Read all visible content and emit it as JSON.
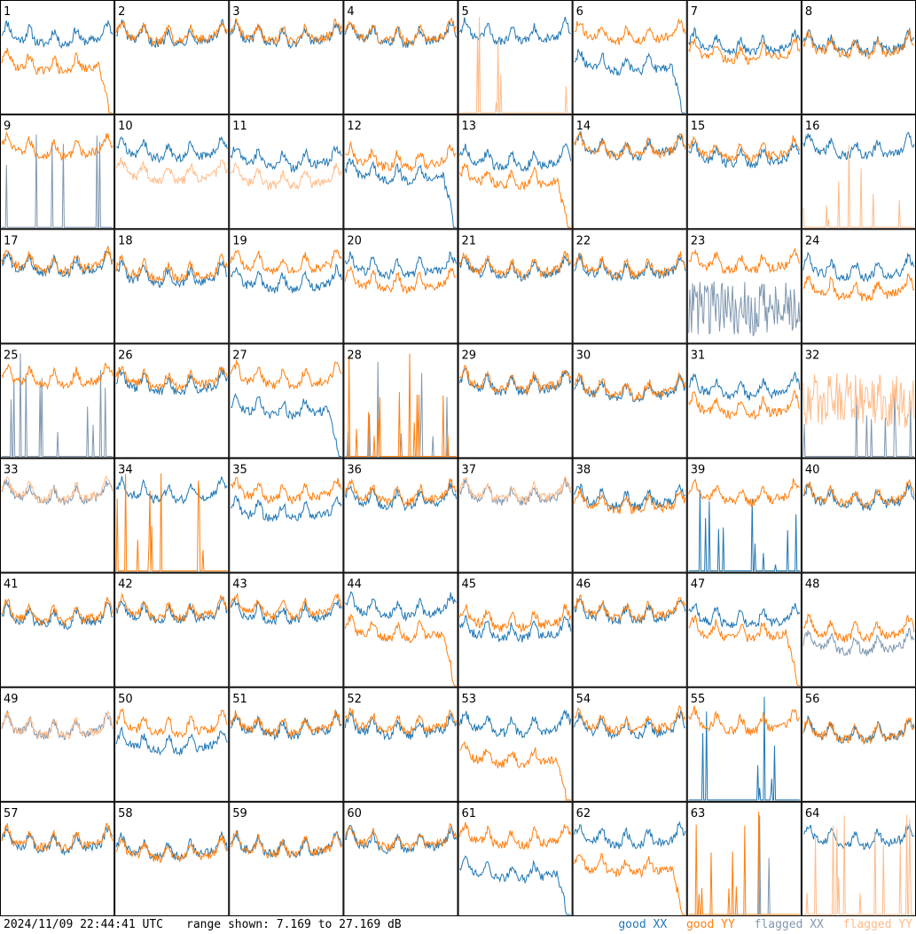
{
  "footer": {
    "timestamp": "2024/11/09 22:44:41 UTC",
    "range_text": "range shown: 7.169 to 27.169 dB"
  },
  "legend": {
    "good_xx": "good XX",
    "good_yy": "good YY",
    "flagged_xx": "flagged XX",
    "flagged_yy": "flagged YY"
  },
  "colors": {
    "good_xx": "#1f77b4",
    "good_yy": "#ff7f0e",
    "flagged_xx": "#7f97b0",
    "flagged_yy": "#ffbb88"
  },
  "chart_data": {
    "type": "line",
    "panels_per_row": 8,
    "ylim": [
      7.169,
      27.169
    ],
    "panels": [
      {
        "id": "1",
        "xx": "good",
        "yy": "good",
        "xx_level": 0.7,
        "yy_level": 0.45,
        "xx_shape": "normal",
        "yy_shape": "fall"
      },
      {
        "id": "2",
        "xx": "good",
        "yy": "good",
        "xx_level": 0.7,
        "yy_level": 0.72,
        "xx_shape": "normal",
        "yy_shape": "normal"
      },
      {
        "id": "3",
        "xx": "good",
        "yy": "good",
        "xx_level": 0.7,
        "yy_level": 0.72,
        "xx_shape": "normal",
        "yy_shape": "normal"
      },
      {
        "id": "4",
        "xx": "good",
        "yy": "good",
        "xx_level": 0.7,
        "yy_level": 0.72,
        "xx_shape": "normal",
        "yy_shape": "normal"
      },
      {
        "id": "5",
        "xx": "good",
        "yy": "flagged",
        "xx_level": 0.72,
        "yy_level": 0.0,
        "xx_shape": "normal",
        "yy_shape": "spiky"
      },
      {
        "id": "6",
        "xx": "good",
        "yy": "good",
        "xx_level": 0.45,
        "yy_level": 0.72,
        "xx_shape": "fall",
        "yy_shape": "normal"
      },
      {
        "id": "7",
        "xx": "good",
        "yy": "good",
        "xx_level": 0.62,
        "yy_level": 0.55,
        "xx_shape": "normal",
        "yy_shape": "normal"
      },
      {
        "id": "8",
        "xx": "good",
        "yy": "good",
        "xx_level": 0.62,
        "yy_level": 0.6,
        "xx_shape": "normal",
        "yy_shape": "normal"
      },
      {
        "id": "9",
        "xx": "flagged",
        "yy": "good",
        "xx_level": 0.0,
        "yy_level": 0.72,
        "xx_shape": "spiky",
        "yy_shape": "normal"
      },
      {
        "id": "10",
        "xx": "good",
        "yy": "flagged",
        "xx_level": 0.7,
        "yy_level": 0.5,
        "xx_shape": "normal",
        "yy_shape": "normal"
      },
      {
        "id": "11",
        "xx": "good",
        "yy": "flagged",
        "xx_level": 0.62,
        "yy_level": 0.45,
        "xx_shape": "normal",
        "yy_shape": "normal"
      },
      {
        "id": "12",
        "xx": "good",
        "yy": "good",
        "xx_level": 0.5,
        "yy_level": 0.62,
        "xx_shape": "fall",
        "yy_shape": "normal"
      },
      {
        "id": "13",
        "xx": "good",
        "yy": "good",
        "xx_level": 0.62,
        "yy_level": 0.45,
        "xx_shape": "normal",
        "yy_shape": "fall"
      },
      {
        "id": "14",
        "xx": "good",
        "yy": "good",
        "xx_level": 0.72,
        "yy_level": 0.72,
        "xx_shape": "normal",
        "yy_shape": "normal"
      },
      {
        "id": "15",
        "xx": "good",
        "yy": "good",
        "xx_level": 0.65,
        "yy_level": 0.7,
        "xx_shape": "normal",
        "yy_shape": "normal"
      },
      {
        "id": "16",
        "xx": "good",
        "yy": "flagged",
        "xx_level": 0.72,
        "yy_level": 0.0,
        "xx_shape": "normal",
        "yy_shape": "spiky"
      },
      {
        "id": "17",
        "xx": "good",
        "yy": "good",
        "xx_level": 0.7,
        "yy_level": 0.72,
        "xx_shape": "normal",
        "yy_shape": "normal"
      },
      {
        "id": "18",
        "xx": "good",
        "yy": "good",
        "xx_level": 0.6,
        "yy_level": 0.65,
        "xx_shape": "normal",
        "yy_shape": "normal"
      },
      {
        "id": "19",
        "xx": "good",
        "yy": "good",
        "xx_level": 0.55,
        "yy_level": 0.72,
        "xx_shape": "normal",
        "yy_shape": "normal"
      },
      {
        "id": "20",
        "xx": "good",
        "yy": "good",
        "xx_level": 0.68,
        "yy_level": 0.55,
        "xx_shape": "normal",
        "yy_shape": "normal"
      },
      {
        "id": "21",
        "xx": "good",
        "yy": "good",
        "xx_level": 0.66,
        "yy_level": 0.68,
        "xx_shape": "normal",
        "yy_shape": "normal"
      },
      {
        "id": "22",
        "xx": "good",
        "yy": "good",
        "xx_level": 0.66,
        "yy_level": 0.68,
        "xx_shape": "normal",
        "yy_shape": "normal"
      },
      {
        "id": "23",
        "xx": "flagged",
        "yy": "good",
        "xx_level": 0.3,
        "yy_level": 0.72,
        "xx_shape": "noisy",
        "yy_shape": "normal"
      },
      {
        "id": "24",
        "xx": "good",
        "yy": "good",
        "xx_level": 0.66,
        "yy_level": 0.48,
        "xx_shape": "normal",
        "yy_shape": "normal"
      },
      {
        "id": "25",
        "xx": "flagged",
        "yy": "good",
        "xx_level": 0.0,
        "yy_level": 0.72,
        "xx_shape": "spiky",
        "yy_shape": "normal"
      },
      {
        "id": "26",
        "xx": "good",
        "yy": "good",
        "xx_level": 0.66,
        "yy_level": 0.7,
        "xx_shape": "normal",
        "yy_shape": "normal"
      },
      {
        "id": "27",
        "xx": "good",
        "yy": "good",
        "xx_level": 0.45,
        "yy_level": 0.72,
        "xx_shape": "fall",
        "yy_shape": "normal"
      },
      {
        "id": "28",
        "xx": "flagged",
        "yy": "good",
        "xx_level": 0.0,
        "yy_level": 0.0,
        "xx_shape": "spiky",
        "yy_shape": "spiky"
      },
      {
        "id": "29",
        "xx": "good",
        "yy": "good",
        "xx_level": 0.66,
        "yy_level": 0.68,
        "xx_shape": "normal",
        "yy_shape": "normal"
      },
      {
        "id": "30",
        "xx": "good",
        "yy": "good",
        "xx_level": 0.6,
        "yy_level": 0.62,
        "xx_shape": "normal",
        "yy_shape": "normal"
      },
      {
        "id": "31",
        "xx": "good",
        "yy": "good",
        "xx_level": 0.62,
        "yy_level": 0.45,
        "xx_shape": "normal",
        "yy_shape": "normal"
      },
      {
        "id": "32",
        "xx": "flagged",
        "yy": "flagged",
        "xx_level": 0.0,
        "yy_level": 0.5,
        "xx_shape": "spiky",
        "yy_shape": "noisy"
      },
      {
        "id": "33",
        "xx": "flagged",
        "yy": "flagged",
        "xx_level": 0.7,
        "yy_level": 0.72,
        "xx_shape": "normal",
        "yy_shape": "normal"
      },
      {
        "id": "34",
        "xx": "good",
        "yy": "good",
        "xx_level": 0.72,
        "yy_level": 0.0,
        "xx_shape": "normal",
        "yy_shape": "spiky"
      },
      {
        "id": "35",
        "xx": "good",
        "yy": "good",
        "xx_level": 0.55,
        "yy_level": 0.72,
        "xx_shape": "normal",
        "yy_shape": "normal"
      },
      {
        "id": "36",
        "xx": "good",
        "yy": "good",
        "xx_level": 0.66,
        "yy_level": 0.7,
        "xx_shape": "normal",
        "yy_shape": "normal"
      },
      {
        "id": "37",
        "xx": "flagged",
        "yy": "flagged",
        "xx_level": 0.7,
        "yy_level": 0.72,
        "xx_shape": "normal",
        "yy_shape": "normal"
      },
      {
        "id": "38",
        "xx": "good",
        "yy": "good",
        "xx_level": 0.66,
        "yy_level": 0.62,
        "xx_shape": "normal",
        "yy_shape": "normal"
      },
      {
        "id": "39",
        "xx": "good",
        "yy": "good",
        "xx_level": 0.0,
        "yy_level": 0.7,
        "xx_shape": "spiky",
        "yy_shape": "normal"
      },
      {
        "id": "40",
        "xx": "good",
        "yy": "good",
        "xx_level": 0.66,
        "yy_level": 0.68,
        "xx_shape": "normal",
        "yy_shape": "normal"
      },
      {
        "id": "41",
        "xx": "good",
        "yy": "good",
        "xx_level": 0.62,
        "yy_level": 0.65,
        "xx_shape": "normal",
        "yy_shape": "normal"
      },
      {
        "id": "42",
        "xx": "good",
        "yy": "good",
        "xx_level": 0.66,
        "yy_level": 0.68,
        "xx_shape": "normal",
        "yy_shape": "normal"
      },
      {
        "id": "43",
        "xx": "good",
        "yy": "good",
        "xx_level": 0.66,
        "yy_level": 0.7,
        "xx_shape": "normal",
        "yy_shape": "normal"
      },
      {
        "id": "44",
        "xx": "good",
        "yy": "good",
        "xx_level": 0.7,
        "yy_level": 0.5,
        "xx_shape": "normal",
        "yy_shape": "fall"
      },
      {
        "id": "45",
        "xx": "good",
        "yy": "good",
        "xx_level": 0.5,
        "yy_level": 0.6,
        "xx_shape": "normal",
        "yy_shape": "normal"
      },
      {
        "id": "46",
        "xx": "good",
        "yy": "good",
        "xx_level": 0.66,
        "yy_level": 0.68,
        "xx_shape": "normal",
        "yy_shape": "normal"
      },
      {
        "id": "47",
        "xx": "good",
        "yy": "good",
        "xx_level": 0.62,
        "yy_level": 0.5,
        "xx_shape": "normal",
        "yy_shape": "fall"
      },
      {
        "id": "48",
        "xx": "flagged",
        "yy": "good",
        "xx_level": 0.38,
        "yy_level": 0.5,
        "xx_shape": "normal",
        "yy_shape": "normal"
      },
      {
        "id": "49",
        "xx": "flagged",
        "yy": "flagged",
        "xx_level": 0.66,
        "yy_level": 0.66,
        "xx_shape": "normal",
        "yy_shape": "normal"
      },
      {
        "id": "50",
        "xx": "good",
        "yy": "good",
        "xx_level": 0.52,
        "yy_level": 0.68,
        "xx_shape": "normal",
        "yy_shape": "normal"
      },
      {
        "id": "51",
        "xx": "good",
        "yy": "good",
        "xx_level": 0.66,
        "yy_level": 0.68,
        "xx_shape": "normal",
        "yy_shape": "normal"
      },
      {
        "id": "52",
        "xx": "good",
        "yy": "good",
        "xx_level": 0.66,
        "yy_level": 0.7,
        "xx_shape": "normal",
        "yy_shape": "normal"
      },
      {
        "id": "53",
        "xx": "good",
        "yy": "good",
        "xx_level": 0.68,
        "yy_level": 0.4,
        "xx_shape": "normal",
        "yy_shape": "fall"
      },
      {
        "id": "54",
        "xx": "good",
        "yy": "good",
        "xx_level": 0.66,
        "yy_level": 0.7,
        "xx_shape": "normal",
        "yy_shape": "normal"
      },
      {
        "id": "55",
        "xx": "good",
        "yy": "good",
        "xx_level": 0.0,
        "yy_level": 0.7,
        "xx_shape": "spiky",
        "yy_shape": "normal"
      },
      {
        "id": "56",
        "xx": "good",
        "yy": "good",
        "xx_level": 0.62,
        "yy_level": 0.62,
        "xx_shape": "normal",
        "yy_shape": "normal"
      },
      {
        "id": "57",
        "xx": "good",
        "yy": "good",
        "xx_level": 0.66,
        "yy_level": 0.68,
        "xx_shape": "normal",
        "yy_shape": "normal"
      },
      {
        "id": "58",
        "xx": "good",
        "yy": "good",
        "xx_level": 0.6,
        "yy_level": 0.58,
        "xx_shape": "normal",
        "yy_shape": "normal"
      },
      {
        "id": "59",
        "xx": "good",
        "yy": "good",
        "xx_level": 0.62,
        "yy_level": 0.62,
        "xx_shape": "normal",
        "yy_shape": "normal"
      },
      {
        "id": "60",
        "xx": "good",
        "yy": "good",
        "xx_level": 0.66,
        "yy_level": 0.68,
        "xx_shape": "normal",
        "yy_shape": "normal"
      },
      {
        "id": "61",
        "xx": "good",
        "yy": "good",
        "xx_level": 0.4,
        "yy_level": 0.7,
        "xx_shape": "fall",
        "yy_shape": "normal"
      },
      {
        "id": "62",
        "xx": "good",
        "yy": "good",
        "xx_level": 0.7,
        "yy_level": 0.45,
        "xx_shape": "normal",
        "yy_shape": "fall"
      },
      {
        "id": "63",
        "xx": "flagged",
        "yy": "good",
        "xx_level": 0.0,
        "yy_level": 0.0,
        "xx_shape": "spiky",
        "yy_shape": "spiky"
      },
      {
        "id": "64",
        "xx": "good",
        "yy": "flagged",
        "xx_level": 0.7,
        "yy_level": 0.0,
        "xx_shape": "normal",
        "yy_shape": "spiky"
      }
    ]
  }
}
